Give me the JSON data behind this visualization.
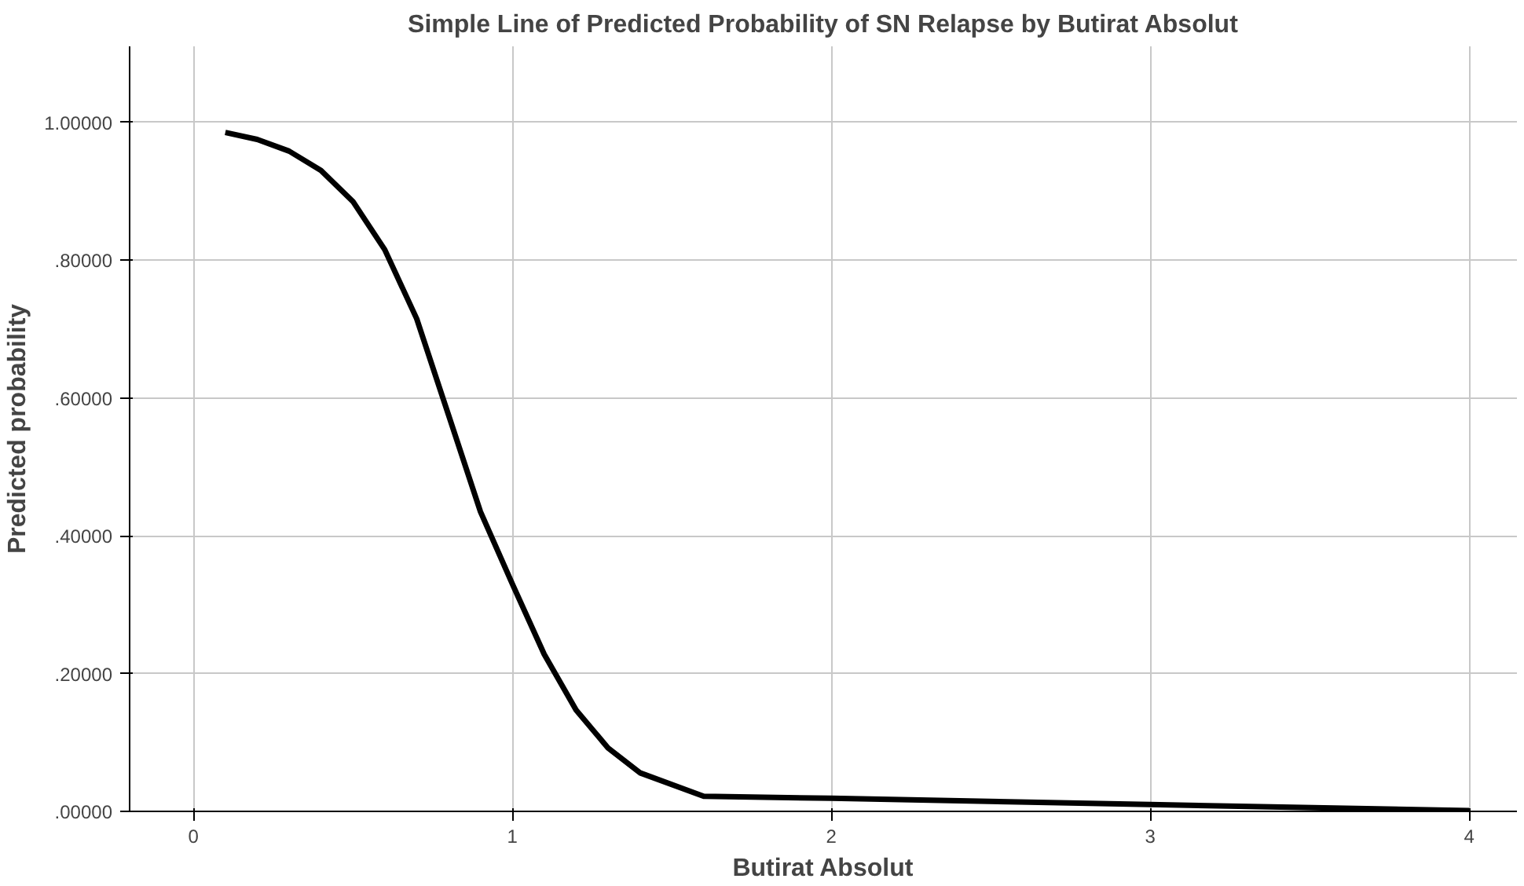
{
  "chart_data": {
    "type": "line",
    "title": "Simple Line of Predicted Probability of SN Relapse by Butirat Absolut",
    "xlabel": "Butirat Absolut",
    "ylabel": "Predicted probability",
    "series": [
      {
        "color": "#000000",
        "x": [
          0.1,
          0.2,
          0.3,
          0.4,
          0.5,
          0.6,
          0.7,
          0.8,
          0.9,
          1.0,
          1.1,
          1.2,
          1.3,
          1.4,
          1.6,
          2.0,
          3.0,
          4.0
        ],
        "values": [
          0.985,
          0.975,
          0.958,
          0.93,
          0.885,
          0.815,
          0.715,
          0.575,
          0.435,
          0.33,
          0.228,
          0.147,
          0.092,
          0.056,
          0.022,
          0.019,
          0.01,
          0.001
        ]
      }
    ],
    "xlim": [
      -0.2,
      4.15
    ],
    "ylim": [
      0,
      1.11
    ],
    "xticks": [
      0,
      1,
      2,
      3,
      4
    ],
    "yticks": [
      {
        "value": 0,
        "label": ".00000"
      },
      {
        "value": 0.2,
        "label": ".20000"
      },
      {
        "value": 0.4,
        "label": ".40000"
      },
      {
        "value": 0.6,
        "label": ".60000"
      },
      {
        "value": 0.8,
        "label": ".80000"
      },
      {
        "value": 1.0,
        "label": "1.00000"
      }
    ],
    "grid": true,
    "marker": "none",
    "line_style": "solid"
  }
}
